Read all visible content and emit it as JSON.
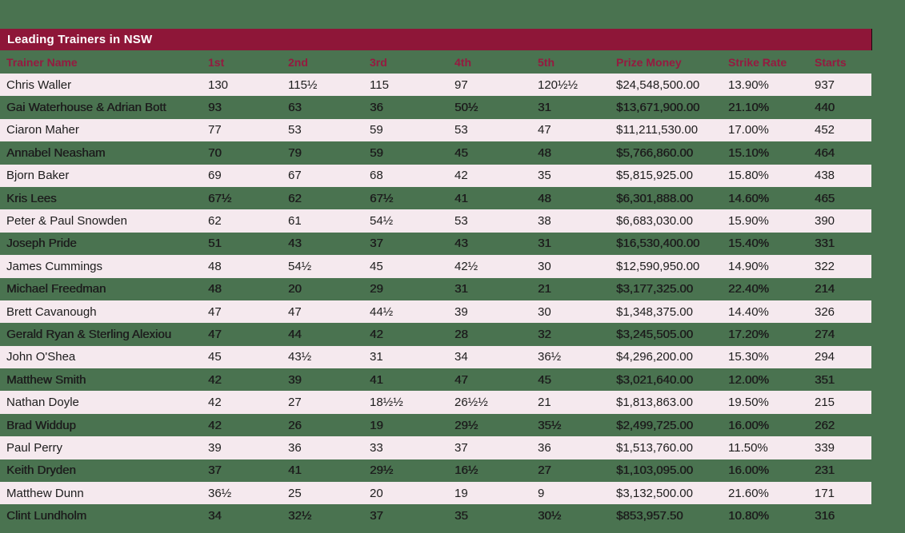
{
  "title": "Leading Trainers in NSW",
  "columns": [
    "Trainer Name",
    "1st",
    "2nd",
    "3rd",
    "4th",
    "5th",
    "Prize Money",
    "Strike Rate",
    "Starts"
  ],
  "rows": [
    [
      "Chris Waller",
      "130",
      "115½",
      "115",
      "97",
      "120½½",
      "$24,548,500.00",
      "13.90%",
      "937"
    ],
    [
      "Gai Waterhouse & Adrian Bott",
      "93",
      "63",
      "36",
      "50½",
      "31",
      "$13,671,900.00",
      "21.10%",
      "440"
    ],
    [
      "Ciaron Maher",
      "77",
      "53",
      "59",
      "53",
      "47",
      "$11,211,530.00",
      "17.00%",
      "452"
    ],
    [
      "Annabel Neasham",
      "70",
      "79",
      "59",
      "45",
      "48",
      "$5,766,860.00",
      "15.10%",
      "464"
    ],
    [
      "Bjorn Baker",
      "69",
      "67",
      "68",
      "42",
      "35",
      "$5,815,925.00",
      "15.80%",
      "438"
    ],
    [
      "Kris Lees",
      "67½",
      "62",
      "67½",
      "41",
      "48",
      "$6,301,888.00",
      "14.60%",
      "465"
    ],
    [
      "Peter & Paul Snowden",
      "62",
      "61",
      "54½",
      "53",
      "38",
      "$6,683,030.00",
      "15.90%",
      "390"
    ],
    [
      "Joseph Pride",
      "51",
      "43",
      "37",
      "43",
      "31",
      "$16,530,400.00",
      "15.40%",
      "331"
    ],
    [
      "James Cummings",
      "48",
      "54½",
      "45",
      "42½",
      "30",
      "$12,590,950.00",
      "14.90%",
      "322"
    ],
    [
      "Michael Freedman",
      "48",
      "20",
      "29",
      "31",
      "21",
      "$3,177,325.00",
      "22.40%",
      "214"
    ],
    [
      "Brett Cavanough",
      "47",
      "47",
      "44½",
      "39",
      "30",
      "$1,348,375.00",
      "14.40%",
      "326"
    ],
    [
      "Gerald Ryan & Sterling Alexiou",
      "47",
      "44",
      "42",
      "28",
      "32",
      "$3,245,505.00",
      "17.20%",
      "274"
    ],
    [
      "John O'Shea",
      "45",
      "43½",
      "31",
      "34",
      "36½",
      "$4,296,200.00",
      "15.30%",
      "294"
    ],
    [
      "Matthew Smith",
      "42",
      "39",
      "41",
      "47",
      "45",
      "$3,021,640.00",
      "12.00%",
      "351"
    ],
    [
      "Nathan Doyle",
      "42",
      "27",
      "18½½",
      "26½½",
      "21",
      "$1,813,863.00",
      "19.50%",
      "215"
    ],
    [
      "Brad Widdup",
      "42",
      "26",
      "19",
      "29½",
      "35½",
      "$2,499,725.00",
      "16.00%",
      "262"
    ],
    [
      "Paul Perry",
      "39",
      "36",
      "33",
      "37",
      "36",
      "$1,513,760.00",
      "11.50%",
      "339"
    ],
    [
      "Keith Dryden",
      "37",
      "41",
      "29½",
      "16½",
      "27",
      "$1,103,095.00",
      "16.00%",
      "231"
    ],
    [
      "Matthew Dunn",
      "36½",
      "25",
      "20",
      "19",
      "9",
      "$3,132,500.00",
      "21.60%",
      "171"
    ],
    [
      "Clint Lundholm",
      "34",
      "32½",
      "37",
      "35",
      "30½",
      "$853,957.50",
      "10.80%",
      "316"
    ]
  ],
  "colors": {
    "page_bg": "#4a7350",
    "title_bar_bg": "#8e1638",
    "title_text": "#ffffff",
    "column_header_text": "#951a40",
    "alt_row_bg": "#f5e9ee",
    "data_text": "#1d1d1d"
  }
}
